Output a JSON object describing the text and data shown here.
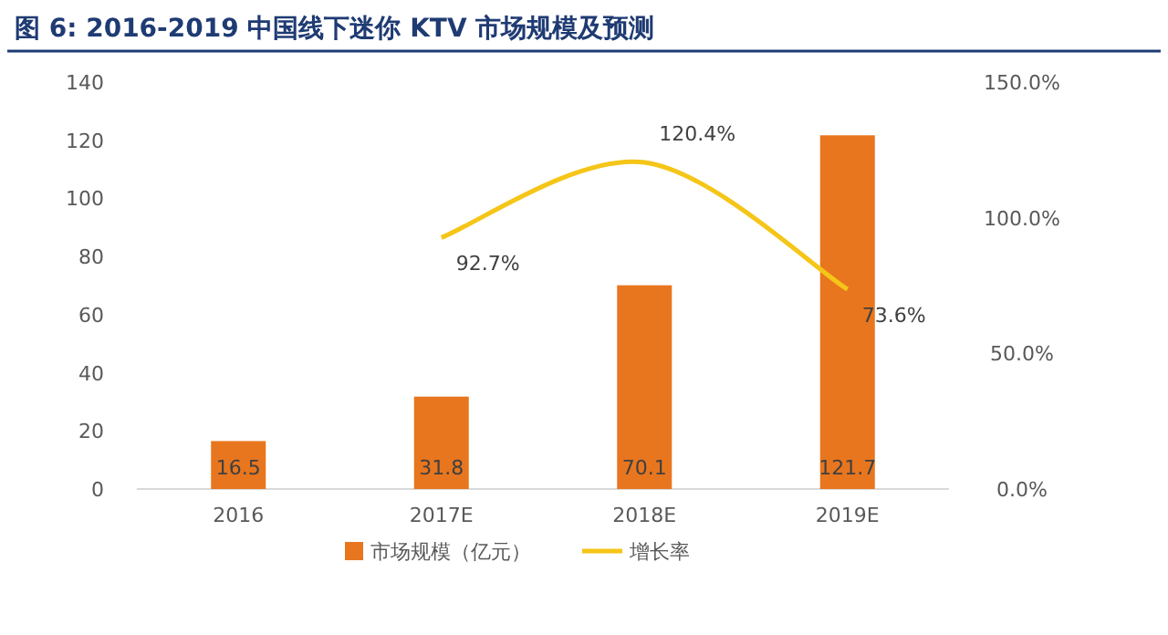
{
  "chart_data": {
    "type": "bar",
    "title": "图 6: 2016-2019 中国线下迷你 KTV 市场规模及预测",
    "categories": [
      "2016",
      "2017E",
      "2018E",
      "2019E"
    ],
    "series": [
      {
        "name": "市场规模（亿元）",
        "color": "#e8761e",
        "values": [
          16.5,
          31.8,
          70.1,
          121.7
        ],
        "value_labels": [
          "16.5",
          "31.8",
          "70.1",
          "121.7"
        ]
      },
      {
        "name": "增长率",
        "type": "line",
        "axis": "y2",
        "color": "#f5c518",
        "values": [
          null,
          92.7,
          120.4,
          73.6
        ],
        "value_labels": [
          null,
          "92.7%",
          "120.4%",
          "73.6%"
        ]
      }
    ],
    "ylim": [
      0,
      140
    ],
    "yticks": [
      0,
      20,
      40,
      60,
      80,
      100,
      120,
      140
    ],
    "y2lim": [
      0,
      150
    ],
    "y2ticks": [
      {
        "value": 0,
        "label": "0.0%"
      },
      {
        "value": 50,
        "label": "50.0%"
      },
      {
        "value": 100,
        "label": "100.0%"
      },
      {
        "value": 150,
        "label": "150.0%"
      }
    ],
    "legend": "bottom"
  }
}
